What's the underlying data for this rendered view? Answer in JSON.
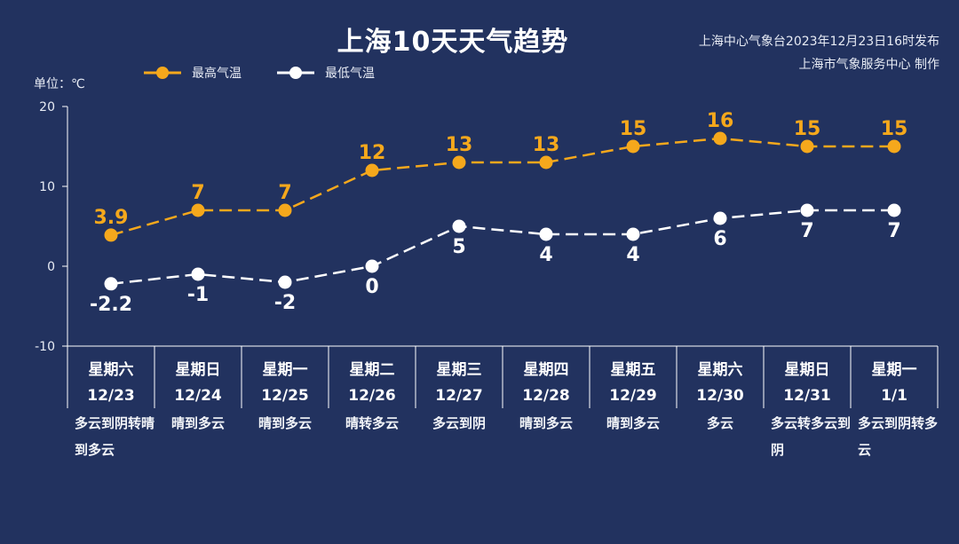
{
  "header": {
    "title": "上海10天天气趋势",
    "publisher_line1": "上海中心气象台2023年12月23日16时发布",
    "publisher_line2": "上海市气象服务中心 制作",
    "unit": "单位：℃"
  },
  "legend": {
    "high": "最高气温",
    "low": "最低气温"
  },
  "colors": {
    "background": "#22325f",
    "high": "#f5a81c",
    "low": "#ffffff",
    "axis": "#ffffff"
  },
  "chart_data": {
    "type": "line",
    "ylim": [
      -10,
      20
    ],
    "yticks": [
      -10,
      0,
      10,
      20
    ],
    "x_weekday": [
      "星期六",
      "星期日",
      "星期一",
      "星期二",
      "星期三",
      "星期四",
      "星期五",
      "星期六",
      "星期日",
      "星期一"
    ],
    "x_date": [
      "12/23",
      "12/24",
      "12/25",
      "12/26",
      "12/27",
      "12/28",
      "12/29",
      "12/30",
      "12/31",
      "1/1"
    ],
    "weather": [
      "多云到阴转晴到多云",
      "晴到多云",
      "晴到多云",
      "晴转多云",
      "多云到阴",
      "晴到多云",
      "晴到多云",
      "多云",
      "多云转多云到阴",
      "多云到阴转多云"
    ],
    "series": [
      {
        "name": "最高气温",
        "values": [
          3.9,
          7,
          7,
          12,
          13,
          13,
          15,
          16,
          15,
          15
        ],
        "labels": [
          "3.9",
          "7",
          "7",
          "12",
          "13",
          "13",
          "15",
          "16",
          "15",
          "15"
        ]
      },
      {
        "name": "最低气温",
        "values": [
          -2.2,
          -1,
          -2,
          0,
          5,
          4,
          4,
          6,
          7,
          7
        ],
        "labels": [
          "-2.2",
          "-1",
          "-2",
          "0",
          "5",
          "4",
          "4",
          "6",
          "7",
          "7"
        ]
      }
    ]
  }
}
